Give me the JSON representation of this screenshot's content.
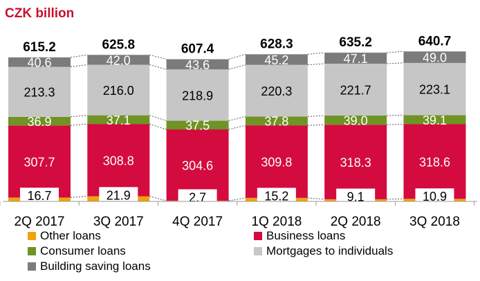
{
  "chart_data": {
    "type": "bar",
    "stacked": true,
    "unit_title": "CZK billion",
    "categories": [
      "2Q 2017",
      "3Q 2017",
      "4Q 2017",
      "1Q 2018",
      "2Q 2018",
      "3Q 2018"
    ],
    "totals": [
      "615.2",
      "625.8",
      "607.4",
      "628.3",
      "635.2",
      "640.7"
    ],
    "series": [
      {
        "key": "other",
        "name": "Other loans",
        "color": "#f0a30a",
        "values": [
          16.7,
          21.9,
          2.7,
          15.2,
          9.1,
          10.9
        ]
      },
      {
        "key": "business",
        "name": "Business loans",
        "color": "#d40b3f",
        "values": [
          307.7,
          308.8,
          304.6,
          309.8,
          318.3,
          318.6
        ]
      },
      {
        "key": "consumer",
        "name": "Consumer loans",
        "color": "#6f9324",
        "values": [
          36.9,
          37.1,
          37.5,
          37.8,
          39.0,
          39.1
        ]
      },
      {
        "key": "mortgages",
        "name": "Mortgages to individuals",
        "color": "#c6c6c6",
        "values": [
          213.3,
          216.0,
          218.9,
          220.3,
          221.7,
          223.1
        ]
      },
      {
        "key": "building",
        "name": "Building saving loans",
        "color": "#7b7b7b",
        "values": [
          40.6,
          42.0,
          43.6,
          45.2,
          47.1,
          49.0
        ]
      }
    ],
    "legend_order": [
      "other",
      "business",
      "consumer",
      "mortgages",
      "building"
    ],
    "title_color": "#c8102e",
    "legend_position": "bottom",
    "grid": false
  }
}
